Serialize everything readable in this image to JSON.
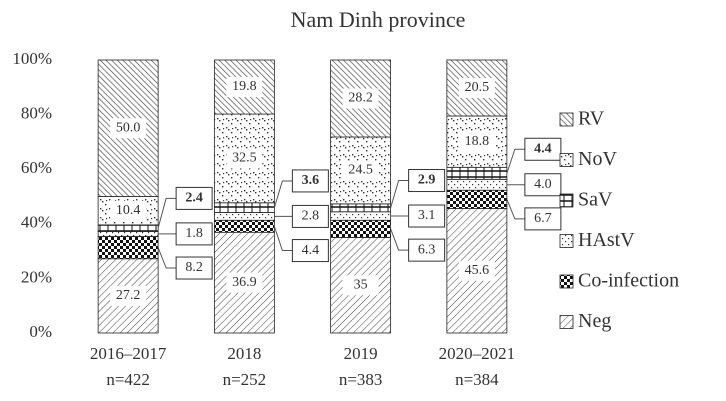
{
  "chart_data": {
    "type": "stacked-bar",
    "title": "Nam Dinh province",
    "categories": [
      "2016–2017",
      "2018",
      "2019",
      "2020–2021"
    ],
    "sample_labels": [
      "n=422",
      "n=252",
      "n=383",
      "n=384"
    ],
    "ylim": [
      0,
      100
    ],
    "yticks": [
      {
        "value": 0,
        "label": "0%"
      },
      {
        "value": 20,
        "label": "20%"
      },
      {
        "value": 40,
        "label": "40%"
      },
      {
        "value": 60,
        "label": "60%"
      },
      {
        "value": 80,
        "label": "80%"
      },
      {
        "value": 100,
        "label": "100%"
      }
    ],
    "grid": false,
    "series": [
      {
        "name": "Neg",
        "pattern": "neg",
        "values": [
          27.2,
          36.9,
          35,
          45.6
        ],
        "value_labels": [
          "27.2",
          "36.9",
          "35",
          "45.6"
        ]
      },
      {
        "name": "Co-infection",
        "pattern": "co",
        "values": [
          8.2,
          4.4,
          6.3,
          6.7
        ],
        "value_labels": [
          "8.2",
          "4.4",
          "6.3",
          "6.7"
        ]
      },
      {
        "name": "HAstV",
        "pattern": "hastv",
        "values": [
          1.8,
          2.8,
          3.1,
          4.0
        ],
        "value_labels": [
          "1.8",
          "2.8",
          "3.1",
          "4.0"
        ]
      },
      {
        "name": "SaV",
        "pattern": "sav",
        "values": [
          2.4,
          3.6,
          2.9,
          4.4
        ],
        "value_labels": [
          "2.4",
          "3.6",
          "2.9",
          "4.4"
        ]
      },
      {
        "name": "NoV",
        "pattern": "nov",
        "values": [
          10.4,
          32.5,
          24.5,
          18.8
        ],
        "value_labels": [
          "10.4",
          "32.5",
          "24.5",
          "18.8"
        ]
      },
      {
        "name": "RV",
        "pattern": "rv",
        "values": [
          50.0,
          19.8,
          28.2,
          20.5
        ],
        "value_labels": [
          "50.0",
          "19.8",
          "28.2",
          "20.5"
        ]
      }
    ]
  }
}
